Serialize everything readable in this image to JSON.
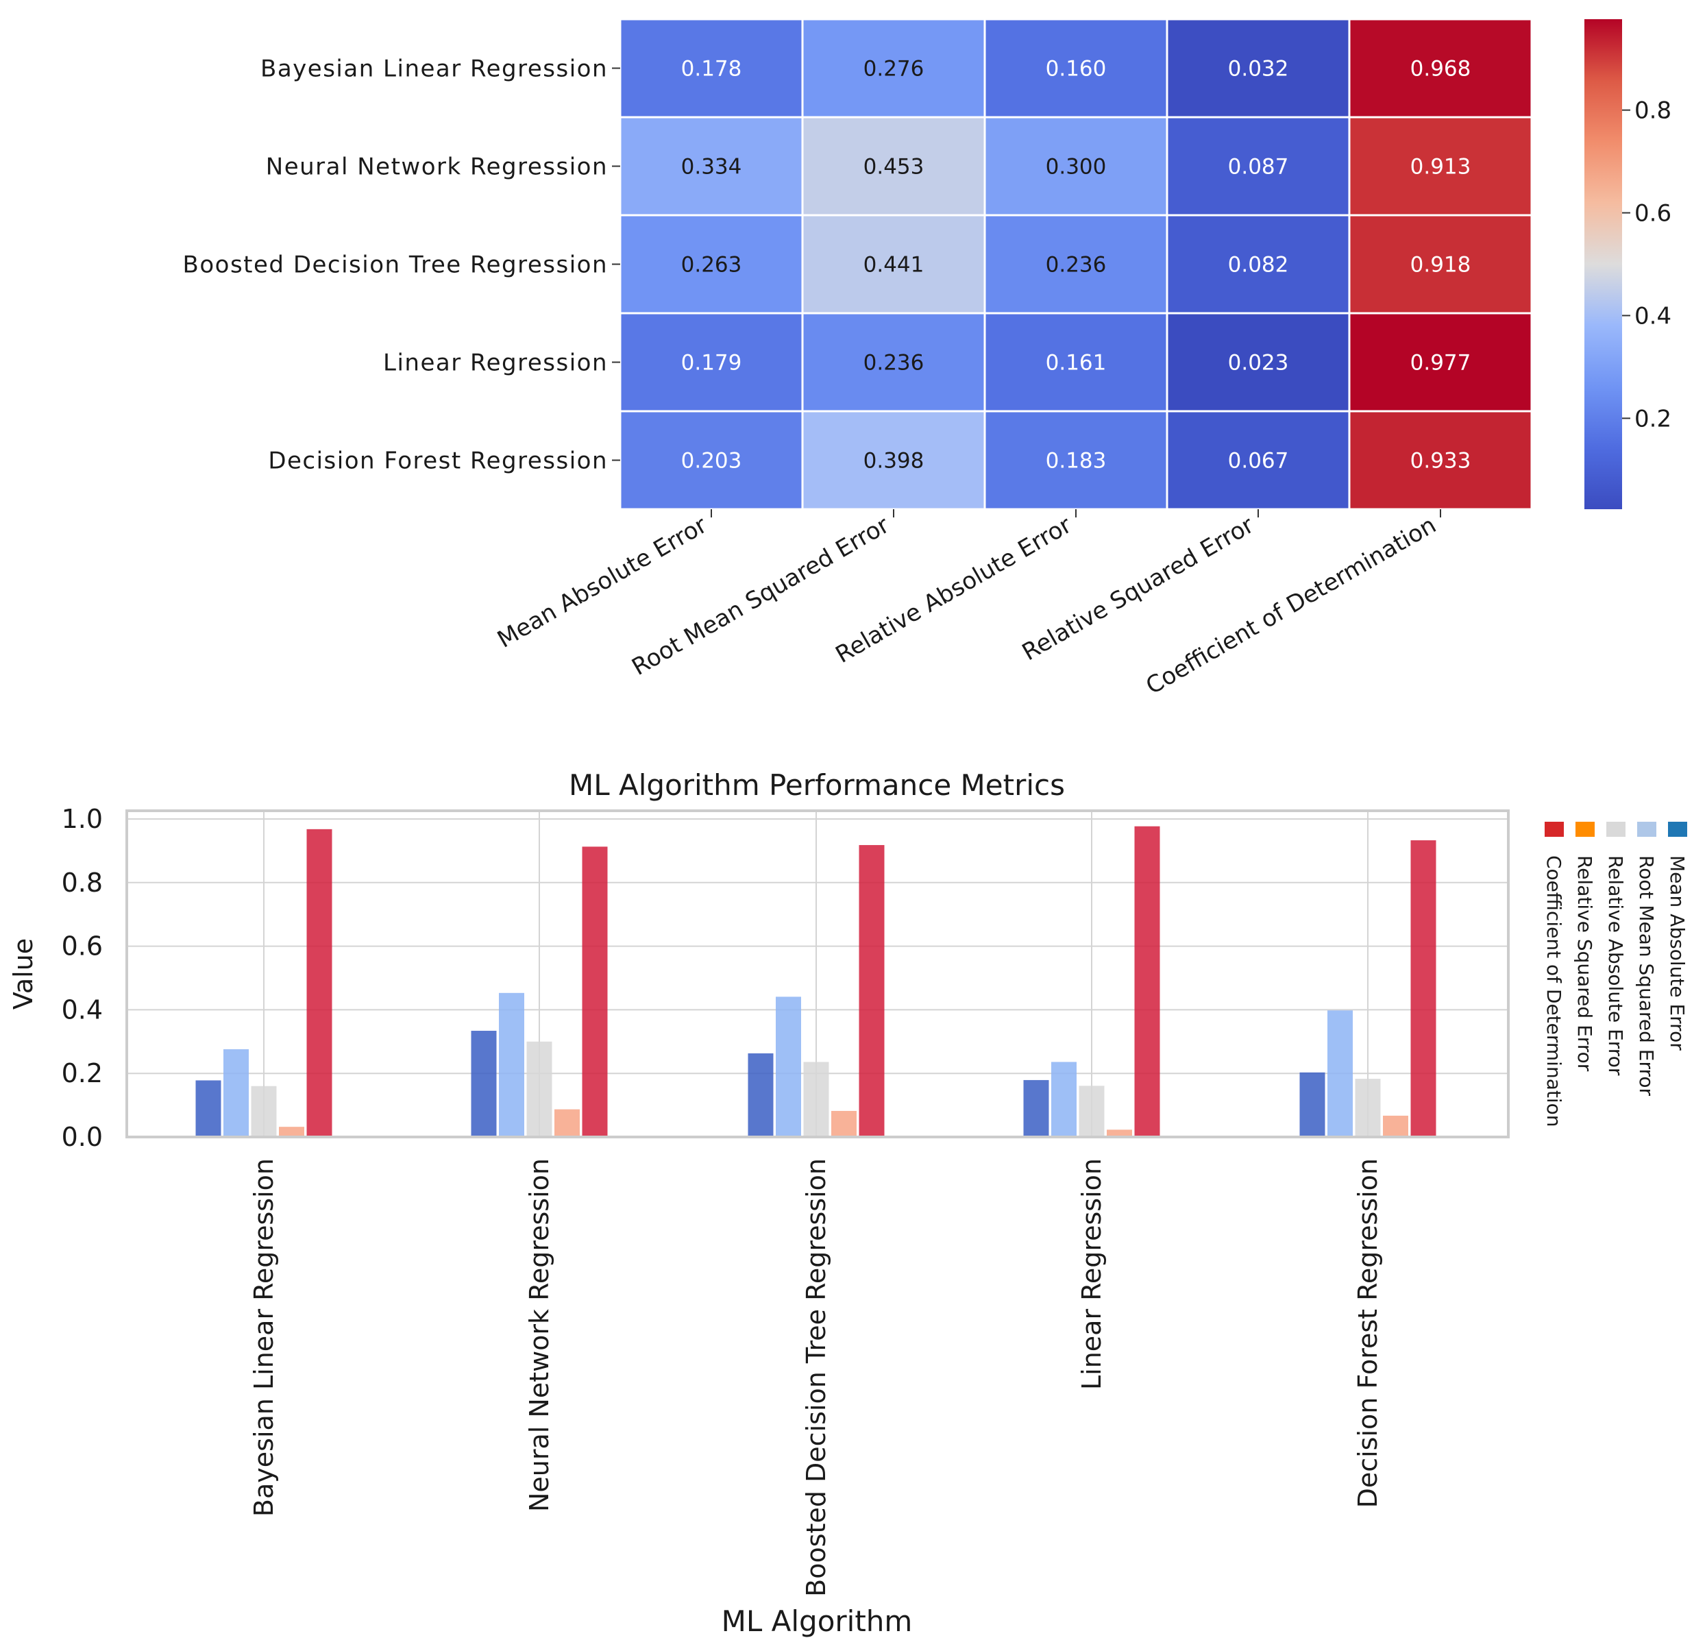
{
  "chart_data": [
    {
      "type": "heatmap",
      "rows": [
        "Bayesian Linear Regression",
        "Neural Network Regression",
        "Boosted Decision Tree Regression",
        "Linear Regression",
        "Decision Forest Regression"
      ],
      "columns": [
        "Mean Absolute Error",
        "Root Mean Squared Error",
        "Relative Absolute Error",
        "Relative Squared Error",
        "Coefficient of Determination"
      ],
      "values": [
        [
          0.178,
          0.276,
          0.16,
          0.032,
          0.968
        ],
        [
          0.334,
          0.453,
          0.3,
          0.087,
          0.913
        ],
        [
          0.263,
          0.441,
          0.236,
          0.082,
          0.918
        ],
        [
          0.179,
          0.236,
          0.161,
          0.023,
          0.977
        ],
        [
          0.203,
          0.398,
          0.183,
          0.067,
          0.933
        ]
      ],
      "value_labels": [
        [
          "0.178",
          "0.276",
          "0.160",
          "0.032",
          "0.968"
        ],
        [
          "0.334",
          "0.453",
          "0.300",
          "0.087",
          "0.913"
        ],
        [
          "0.263",
          "0.441",
          "0.236",
          "0.082",
          "0.918"
        ],
        [
          "0.179",
          "0.236",
          "0.161",
          "0.023",
          "0.977"
        ],
        [
          "0.203",
          "0.398",
          "0.183",
          "0.067",
          "0.933"
        ]
      ],
      "colormap": "coolwarm",
      "colorbar": {
        "range": [
          0.023,
          0.977
        ],
        "ticks": [
          0.2,
          0.4,
          0.6,
          0.8
        ],
        "tick_labels": [
          "0.2",
          "0.4",
          "0.6",
          "0.8"
        ]
      }
    },
    {
      "type": "bar",
      "title": "ML Algorithm Performance Metrics",
      "xlabel": "ML Algorithm",
      "ylabel": "Value",
      "ylim": [
        0,
        1.02
      ],
      "yticks": [
        0.0,
        0.2,
        0.4,
        0.6,
        0.8,
        1.0
      ],
      "ytick_labels": [
        "0.0",
        "0.2",
        "0.4",
        "0.6",
        "0.8",
        "1.0"
      ],
      "grid": true,
      "categories": [
        "Bayesian Linear Regression",
        "Neural Network Regression",
        "Boosted Decision Tree Regression",
        "Linear Regression",
        "Decision Forest Regression"
      ],
      "series": [
        {
          "name": "Mean Absolute Error",
          "color": "#3b5fc4",
          "values": [
            0.178,
            0.334,
            0.263,
            0.179,
            0.203
          ]
        },
        {
          "name": "Root Mean Squared Error",
          "color": "#8db4f4",
          "values": [
            0.276,
            0.453,
            0.441,
            0.236,
            0.398
          ]
        },
        {
          "name": "Relative Absolute Error",
          "color": "#d7d7d7",
          "values": [
            0.16,
            0.3,
            0.236,
            0.161,
            0.183
          ]
        },
        {
          "name": "Relative Squared Error",
          "color": "#f7a486",
          "values": [
            0.032,
            0.087,
            0.082,
            0.023,
            0.067
          ]
        },
        {
          "name": "Coefficient of Determination",
          "color": "#d21f3c",
          "values": [
            0.968,
            0.913,
            0.918,
            0.977,
            0.933
          ]
        }
      ],
      "legend": {
        "placement": "right",
        "entries": [
          {
            "label": "Mean Absolute Error",
            "color": "#1f77b4"
          },
          {
            "label": "Root Mean Squared Error",
            "color": "#aec7e8"
          },
          {
            "label": "Relative Absolute Error",
            "color": "#d9d9d9"
          },
          {
            "label": "Relative Squared Error",
            "color": "#ff8c00"
          },
          {
            "label": "Coefficient of Determination",
            "color": "#d62728"
          }
        ]
      }
    }
  ]
}
